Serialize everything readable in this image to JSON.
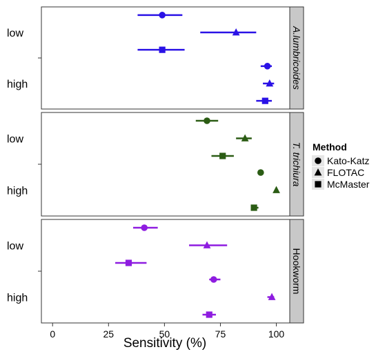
{
  "chart_data": {
    "type": "scatter",
    "subtype": "faceted dot plot with horizontal error bars",
    "xlabel": "Sensitivity (%)",
    "xlim": [
      -5,
      106
    ],
    "xticks": [
      "0",
      "25",
      "50",
      "75",
      "100"
    ],
    "xtick_values": [
      0,
      25,
      50,
      75,
      100
    ],
    "categories": [
      "low",
      "high"
    ],
    "legend": {
      "title": "Method",
      "position": "right",
      "entries": [
        {
          "name": "Kato-Katz",
          "shape": "circle"
        },
        {
          "name": "FLOTAC",
          "shape": "triangle"
        },
        {
          "name": "McMaster",
          "shape": "square"
        }
      ]
    },
    "panels": [
      {
        "label": "A.lumbricoides",
        "color": "#2a12e6",
        "series": [
          {
            "name": "Kato-Katz",
            "values": [
              {
                "category": "low",
                "x": 49,
                "xmin": 38,
                "xmax": 58
              },
              {
                "category": "high",
                "x": 96,
                "xmin": 93,
                "xmax": 98
              }
            ]
          },
          {
            "name": "FLOTAC",
            "values": [
              {
                "category": "low",
                "x": 82,
                "xmin": 66,
                "xmax": 91
              },
              {
                "category": "high",
                "x": 97,
                "xmin": 94,
                "xmax": 99
              }
            ]
          },
          {
            "name": "McMaster",
            "values": [
              {
                "category": "low",
                "x": 49,
                "xmin": 38,
                "xmax": 59
              },
              {
                "category": "high",
                "x": 95,
                "xmin": 91,
                "xmax": 98
              }
            ]
          }
        ]
      },
      {
        "label": "T. trichiura",
        "color": "#2b5c14",
        "series": [
          {
            "name": "Kato-Katz",
            "values": [
              {
                "category": "low",
                "x": 69,
                "xmin": 64,
                "xmax": 74
              },
              {
                "category": "high",
                "x": 93,
                "xmin": 92,
                "xmax": 94
              }
            ]
          },
          {
            "name": "FLOTAC",
            "values": [
              {
                "category": "low",
                "x": 86,
                "xmin": 82,
                "xmax": 89
              },
              {
                "category": "high",
                "x": 100,
                "xmin": 100,
                "xmax": 100
              }
            ]
          },
          {
            "name": "McMaster",
            "values": [
              {
                "category": "low",
                "x": 76,
                "xmin": 71,
                "xmax": 81
              },
              {
                "category": "high",
                "x": 90,
                "xmin": 89,
                "xmax": 92
              }
            ]
          }
        ]
      },
      {
        "label": "Hookworm",
        "color": "#8e1ce0",
        "series": [
          {
            "name": "Kato-Katz",
            "values": [
              {
                "category": "low",
                "x": 41,
                "xmin": 36,
                "xmax": 47
              },
              {
                "category": "high",
                "x": 72,
                "xmin": 70,
                "xmax": 75
              }
            ]
          },
          {
            "name": "FLOTAC",
            "values": [
              {
                "category": "low",
                "x": 69,
                "xmin": 61,
                "xmax": 78
              },
              {
                "category": "high",
                "x": 98,
                "xmin": 96,
                "xmax": 99
              }
            ]
          },
          {
            "name": "McMaster",
            "values": [
              {
                "category": "low",
                "x": 34,
                "xmin": 28,
                "xmax": 42
              },
              {
                "category": "high",
                "x": 70,
                "xmin": 67,
                "xmax": 73
              }
            ]
          }
        ]
      }
    ]
  }
}
